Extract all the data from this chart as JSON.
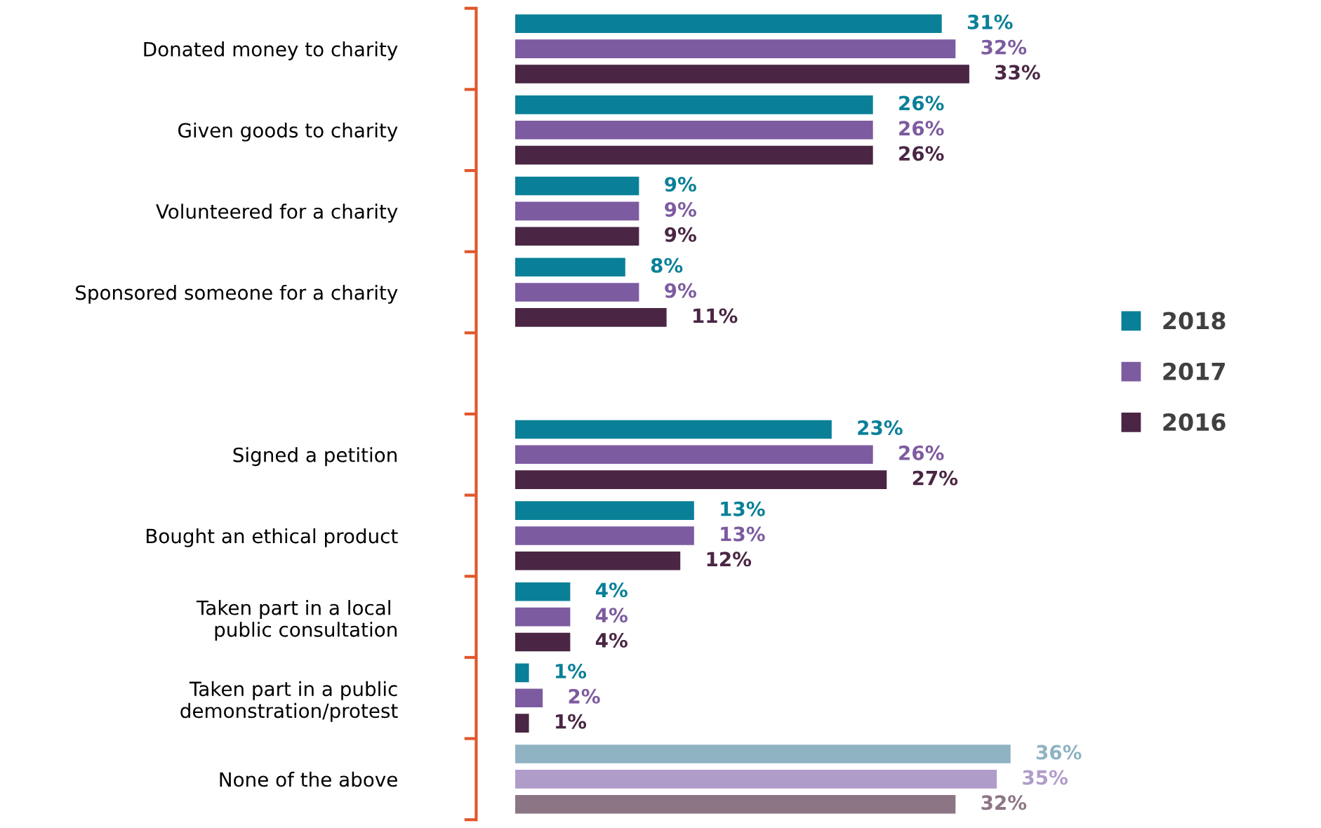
{
  "chart_data": {
    "type": "bar",
    "orientation": "horizontal",
    "legend": "right",
    "categories": [
      "Donated money to charity",
      "Given goods to charity",
      "Volunteered for a charity",
      "Sponsored someone for a charity",
      null,
      "Signed a petition",
      "Bought an ethical product",
      "Taken part in a local \npublic consultation",
      "Taken part in a public\ndemonstration/protest",
      "None of the above"
    ],
    "series": [
      {
        "name": "2018",
        "color": "#0a8098",
        "colors": [
          "#0a8098",
          "#0a8098",
          "#0a8098",
          "#0a8098",
          "#0a8098",
          "#0a8098",
          "#0a8098",
          "#0a8098",
          "#0a8098",
          "#8fb3c2"
        ],
        "values": [
          31,
          26,
          9,
          8,
          null,
          23,
          13,
          4,
          1,
          36
        ],
        "value_labels": [
          "31%",
          "26%",
          "9%",
          "8%",
          null,
          "23%",
          "13%",
          "4%",
          "1%",
          "36%"
        ]
      },
      {
        "name": "2017",
        "color": "#7d5ba0",
        "colors": [
          "#7d5ba0",
          "#7d5ba0",
          "#7d5ba0",
          "#7d5ba0",
          "#7d5ba0",
          "#7d5ba0",
          "#7d5ba0",
          "#7d5ba0",
          "#7d5ba0",
          "#b09cc9"
        ],
        "values": [
          32,
          26,
          9,
          9,
          null,
          26,
          13,
          4,
          2,
          35
        ],
        "value_labels": [
          "32%",
          "26%",
          "9%",
          "9%",
          null,
          "26%",
          "13%",
          "4%",
          "2%",
          "35%"
        ]
      },
      {
        "name": "2016",
        "color": "#4a2644",
        "colors": [
          "#4a2644",
          "#4a2644",
          "#4a2644",
          "#4a2644",
          "#4a2644",
          "#4a2644",
          "#4a2644",
          "#4a2644",
          "#4a2644",
          "#8c7585"
        ],
        "values": [
          33,
          26,
          9,
          11,
          null,
          27,
          12,
          4,
          1,
          32
        ],
        "value_labels": [
          "33%",
          "26%",
          "9%",
          "11%",
          null,
          "27%",
          "12%",
          "4%",
          "1%",
          "32%"
        ]
      }
    ]
  }
}
